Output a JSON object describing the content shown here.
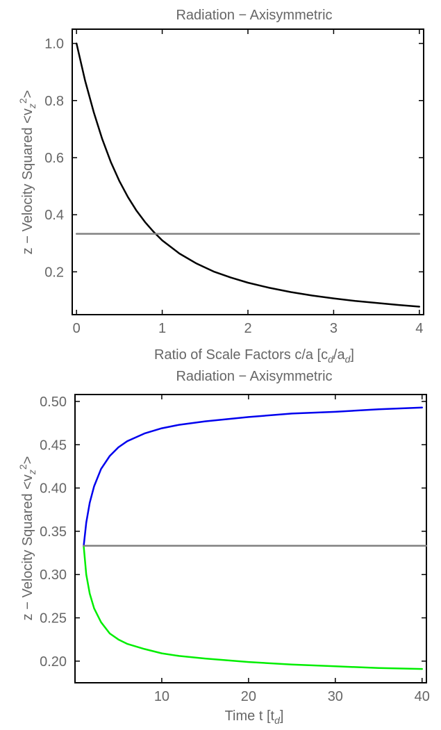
{
  "chart_data": [
    {
      "type": "line",
      "title": "Radiation − Axisymmetric",
      "xlabel": "Ratio of Scale Factors c/a [c_d/a_d]",
      "xlabel_parts": {
        "pre": "Ratio of Scale Factors c/a [c",
        "sub1": "d",
        "mid": "/a",
        "sub2": "d",
        "post": "]"
      },
      "ylabel": "z − Velocity Squared <v_z^2>",
      "ylabel_parts": {
        "pre": "z − Velocity Squared  <v",
        "sub": "z",
        "sup": "2",
        "post": ">"
      },
      "xlim": [
        -0.05,
        4.05
      ],
      "ylim": [
        0.05,
        1.05
      ],
      "xticks": [
        0,
        1,
        2,
        3,
        4
      ],
      "yticks": [
        0.2,
        0.4,
        0.6,
        0.8,
        1.0
      ],
      "xtick_labels": [
        "0",
        "1",
        "2",
        "3",
        "4"
      ],
      "ytick_labels": [
        "0.2",
        "0.4",
        "0.6",
        "0.8",
        "1.0"
      ],
      "grid": false,
      "series": [
        {
          "color": "#000000",
          "x": [
            0,
            0.1,
            0.2,
            0.3,
            0.4,
            0.5,
            0.6,
            0.7,
            0.8,
            0.9,
            1.0,
            1.2,
            1.4,
            1.6,
            1.8,
            2.0,
            2.25,
            2.5,
            2.75,
            3.0,
            3.25,
            3.5,
            3.75,
            4.0
          ],
          "y": [
            1.0,
            0.87,
            0.76,
            0.665,
            0.585,
            0.518,
            0.462,
            0.414,
            0.374,
            0.34,
            0.31,
            0.264,
            0.229,
            0.201,
            0.18,
            0.162,
            0.144,
            0.129,
            0.117,
            0.107,
            0.098,
            0.091,
            0.084,
            0.078
          ]
        },
        {
          "color": "#808080",
          "x": [
            0,
            4.0
          ],
          "y": [
            0.3333,
            0.3333
          ]
        }
      ]
    },
    {
      "type": "line",
      "title": "Radiation − Axisymmetric",
      "xlabel": "Time t [t_d]",
      "xlabel_parts": {
        "pre": "Time  t [t",
        "sub1": "d",
        "mid": "",
        "sub2": "",
        "post": "]"
      },
      "ylabel": "z − Velocity Squared <v_z^2>",
      "ylabel_parts": {
        "pre": "z − Velocity Squared  <v",
        "sub": "z",
        "sup": "2",
        "post": ">"
      },
      "xlim": [
        0,
        40.5
      ],
      "ylim": [
        0.175,
        0.508
      ],
      "xticks": [
        10,
        20,
        30,
        40
      ],
      "yticks": [
        0.2,
        0.25,
        0.3,
        0.35,
        0.4,
        0.45,
        0.5
      ],
      "xtick_labels": [
        "10",
        "20",
        "30",
        "40"
      ],
      "ytick_labels": [
        "0.20",
        "0.25",
        "0.30",
        "0.35",
        "0.40",
        "0.45",
        "0.50"
      ],
      "grid": false,
      "series": [
        {
          "color": "#0000ee",
          "x": [
            1,
            1.3,
            1.7,
            2.2,
            3,
            4,
            5,
            6,
            8,
            10,
            12,
            15,
            20,
            25,
            30,
            35,
            40
          ],
          "y": [
            0.333,
            0.36,
            0.383,
            0.402,
            0.422,
            0.437,
            0.447,
            0.454,
            0.463,
            0.469,
            0.473,
            0.477,
            0.482,
            0.486,
            0.488,
            0.491,
            0.493
          ]
        },
        {
          "color": "#00ee00",
          "x": [
            1,
            1.3,
            1.7,
            2.2,
            3,
            4,
            5,
            6,
            8,
            10,
            12,
            15,
            20,
            25,
            30,
            35,
            40
          ],
          "y": [
            0.333,
            0.3,
            0.278,
            0.261,
            0.245,
            0.232,
            0.225,
            0.22,
            0.214,
            0.209,
            0.206,
            0.203,
            0.199,
            0.196,
            0.194,
            0.192,
            0.191
          ]
        },
        {
          "color": "#808080",
          "x": [
            1,
            40.5
          ],
          "y": [
            0.3333,
            0.3333
          ]
        }
      ]
    }
  ]
}
